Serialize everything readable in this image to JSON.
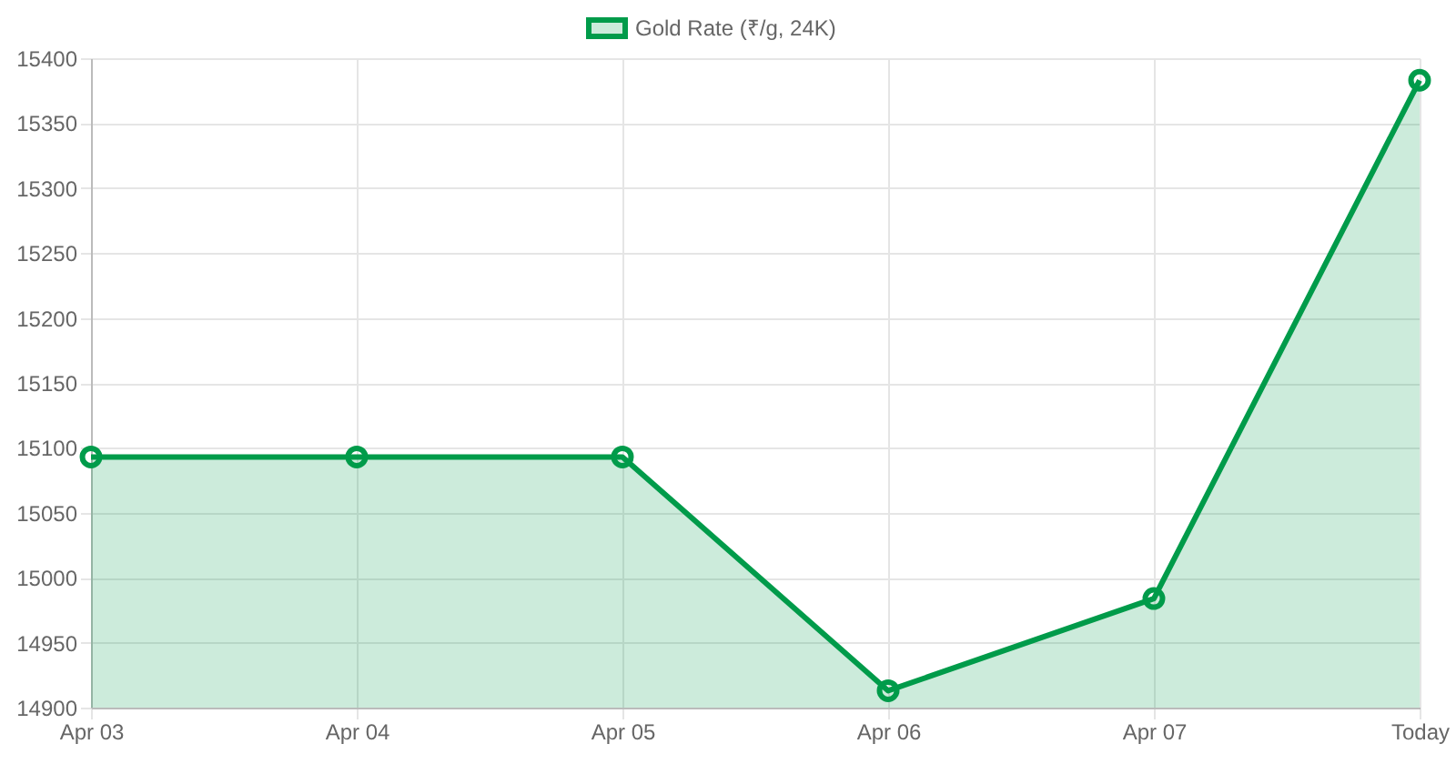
{
  "chart_data": {
    "type": "area",
    "categories": [
      "Apr 03",
      "Apr 04",
      "Apr 05",
      "Apr 06",
      "Apr 07",
      "Today"
    ],
    "series": [
      {
        "name": "Gold Rate (₹/g, 24K)",
        "color": "#009b4a",
        "values": [
          15093,
          15093,
          15093,
          14913,
          14984,
          15383
        ]
      }
    ],
    "ylim": [
      14900,
      15400
    ],
    "yticks": [
      14900,
      14950,
      15000,
      15050,
      15100,
      15150,
      15200,
      15250,
      15300,
      15350,
      15400
    ],
    "grid": true,
    "legend": "top",
    "marker": "circle"
  }
}
